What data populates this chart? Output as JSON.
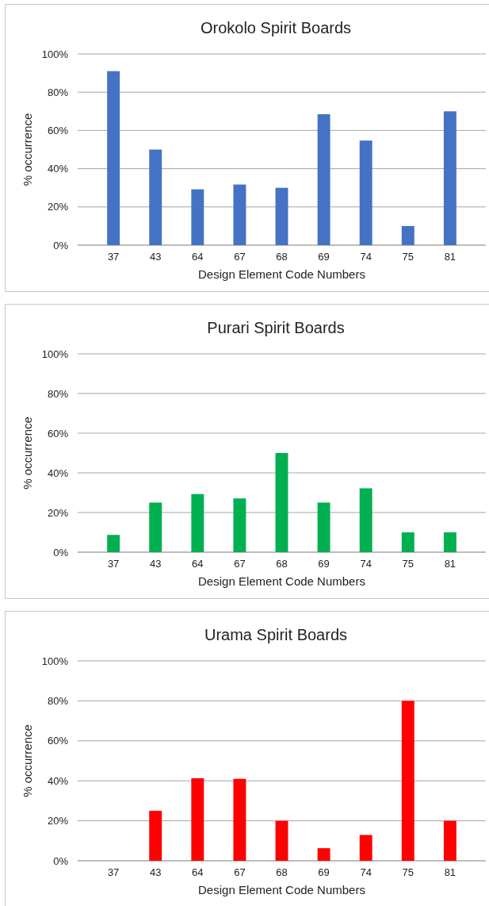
{
  "chart_data": [
    {
      "type": "bar",
      "title": "Orokolo Spirit Boards",
      "xlabel": "Design Element Code Numbers",
      "ylabel": "% occurrence",
      "categories": [
        "37",
        "43",
        "64",
        "67",
        "68",
        "69",
        "74",
        "75",
        "81"
      ],
      "values": [
        91,
        50,
        29.2,
        31.7,
        30,
        68.5,
        54.7,
        10,
        70
      ],
      "color": "#4472c4",
      "ylim": [
        0,
        100
      ],
      "yticks": [
        {
          "value": 0,
          "label": "0%"
        },
        {
          "value": 20,
          "label": "20%"
        },
        {
          "value": 40,
          "label": "40%"
        },
        {
          "value": 60,
          "label": "60%"
        },
        {
          "value": 80,
          "label": "80%"
        },
        {
          "value": 100,
          "label": "100%"
        }
      ],
      "grid": "y"
    },
    {
      "type": "bar",
      "title": "Purari Spirit Boards",
      "xlabel": "Design Element Code Numbers",
      "ylabel": "% occurrence",
      "categories": [
        "37",
        "43",
        "64",
        "67",
        "68",
        "69",
        "74",
        "75",
        "81"
      ],
      "values": [
        8.7,
        25,
        29.3,
        27.1,
        50,
        25,
        32.2,
        10,
        10
      ],
      "color": "#00b050",
      "ylim": [
        0,
        100
      ],
      "yticks": [
        {
          "value": 0,
          "label": "0%"
        },
        {
          "value": 20,
          "label": "20%"
        },
        {
          "value": 40,
          "label": "40%"
        },
        {
          "value": 60,
          "label": "60%"
        },
        {
          "value": 80,
          "label": "80%"
        },
        {
          "value": 100,
          "label": "100%"
        }
      ],
      "grid": "y"
    },
    {
      "type": "bar",
      "title": "Urama Spirit Boards",
      "xlabel": "Design Element Code Numbers",
      "ylabel": "% occurrence",
      "categories": [
        "37",
        "43",
        "64",
        "67",
        "68",
        "69",
        "74",
        "75",
        "81"
      ],
      "values": [
        0,
        25,
        41.3,
        41,
        20,
        6.3,
        12.9,
        80,
        20
      ],
      "color": "#ff0000",
      "ylim": [
        0,
        100
      ],
      "yticks": [
        {
          "value": 0,
          "label": "0%"
        },
        {
          "value": 20,
          "label": "20%"
        },
        {
          "value": 40,
          "label": "40%"
        },
        {
          "value": 60,
          "label": "60%"
        },
        {
          "value": 80,
          "label": "80%"
        },
        {
          "value": 100,
          "label": "100%"
        }
      ],
      "grid": "y"
    }
  ]
}
